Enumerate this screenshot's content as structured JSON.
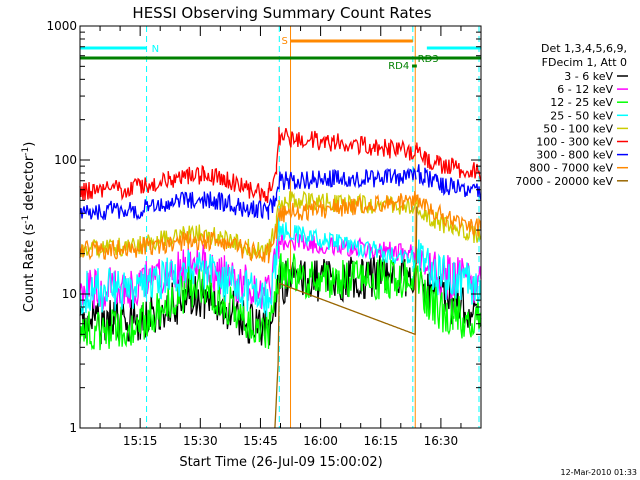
{
  "chart_data": {
    "type": "line",
    "title": "HESSI Observing Summary Count Rates",
    "xlabel": "Start Time (26-Jul-09 15:00:02)",
    "ylabel_parts": [
      "Count Rate (s",
      "-1",
      " detector",
      "-1",
      ")"
    ],
    "yscale": "log",
    "ylim": [
      1,
      1000
    ],
    "xlim_minutes": [
      0,
      100
    ],
    "y_ticks": [
      {
        "v": 1,
        "label": "1"
      },
      {
        "v": 10,
        "label": "10"
      },
      {
        "v": 100,
        "label": "100"
      },
      {
        "v": 1000,
        "label": "1000"
      }
    ],
    "x_ticks": [
      {
        "m": 15,
        "label": "15:15"
      },
      {
        "m": 30,
        "label": "15:30"
      },
      {
        "m": 45,
        "label": "15:45"
      },
      {
        "m": 60,
        "label": "16:00"
      },
      {
        "m": 75,
        "label": "16:15"
      },
      {
        "m": 90,
        "label": "16:30"
      }
    ],
    "legend_header": [
      "Det 1,3,4,5,6,9,",
      "FDecim 1, Att 0"
    ],
    "series": [
      {
        "name": "3 - 6 keV",
        "color": "#000000",
        "seed": 11,
        "points": [
          [
            0,
            6
          ],
          [
            15,
            6.5
          ],
          [
            22,
            8
          ],
          [
            27,
            9.5
          ],
          [
            31,
            9.5
          ],
          [
            36,
            8
          ],
          [
            42,
            6
          ],
          [
            47,
            5.5
          ],
          [
            49,
            10
          ],
          [
            49.6,
            12
          ],
          [
            84,
            14
          ],
          [
            86,
            11
          ],
          [
            89,
            9.5
          ],
          [
            93,
            8.5
          ],
          [
            100,
            8
          ]
        ]
      },
      {
        "name": "6 - 12 keV",
        "color": "#ff00ff",
        "seed": 23,
        "points": [
          [
            0,
            11
          ],
          [
            15,
            11.5
          ],
          [
            22,
            14
          ],
          [
            27,
            16
          ],
          [
            31,
            16
          ],
          [
            36,
            14
          ],
          [
            42,
            11
          ],
          [
            47,
            10
          ],
          [
            49,
            18
          ],
          [
            49.6,
            25
          ],
          [
            84,
            20
          ],
          [
            86,
            17
          ],
          [
            89,
            14
          ],
          [
            93,
            13
          ],
          [
            100,
            12
          ]
        ]
      },
      {
        "name": "12 - 25 keV",
        "color": "#00ff00",
        "seed": 37,
        "points": [
          [
            0,
            5
          ],
          [
            15,
            6
          ],
          [
            22,
            9
          ],
          [
            27,
            11
          ],
          [
            31,
            11
          ],
          [
            36,
            9
          ],
          [
            42,
            6
          ],
          [
            47,
            5
          ],
          [
            49,
            10
          ],
          [
            49.6,
            14
          ],
          [
            84,
            13
          ],
          [
            86,
            10
          ],
          [
            89,
            8
          ],
          [
            93,
            7
          ],
          [
            100,
            6.5
          ]
        ]
      },
      {
        "name": "25 - 50 keV",
        "color": "#00ffff",
        "seed": 41,
        "points": [
          [
            0,
            10.5
          ],
          [
            15,
            11
          ],
          [
            22,
            13
          ],
          [
            27,
            14.5
          ],
          [
            31,
            14.5
          ],
          [
            36,
            13
          ],
          [
            42,
            10.5
          ],
          [
            47,
            9.5
          ],
          [
            49,
            17
          ],
          [
            49.6,
            30
          ],
          [
            84,
            18
          ],
          [
            86,
            16
          ],
          [
            89,
            14
          ],
          [
            93,
            12.5
          ],
          [
            100,
            12
          ]
        ]
      },
      {
        "name": "50 - 100 keV",
        "color": "#cccc00",
        "seed": 53,
        "points": [
          [
            0,
            22
          ],
          [
            15,
            23
          ],
          [
            22,
            26
          ],
          [
            27,
            28
          ],
          [
            31,
            28
          ],
          [
            36,
            26
          ],
          [
            42,
            22
          ],
          [
            47,
            21
          ],
          [
            49,
            33
          ],
          [
            49.6,
            50
          ],
          [
            84,
            45
          ],
          [
            86,
            40
          ],
          [
            89,
            35
          ],
          [
            93,
            31
          ],
          [
            100,
            27
          ]
        ]
      },
      {
        "name": "100 - 300 keV",
        "color": "#ff0000",
        "seed": 61,
        "points": [
          [
            0,
            58
          ],
          [
            15,
            62
          ],
          [
            22,
            72
          ],
          [
            27,
            77
          ],
          [
            31,
            77
          ],
          [
            36,
            72
          ],
          [
            42,
            60
          ],
          [
            47,
            55
          ],
          [
            49,
            90
          ],
          [
            49.6,
            150
          ],
          [
            84,
            115
          ],
          [
            86,
            105
          ],
          [
            89,
            95
          ],
          [
            93,
            88
          ],
          [
            100,
            80
          ]
        ]
      },
      {
        "name": "300 - 800 keV",
        "color": "#0000ff",
        "seed": 71,
        "points": [
          [
            0,
            41
          ],
          [
            15,
            43
          ],
          [
            22,
            48
          ],
          [
            27,
            51
          ],
          [
            31,
            51
          ],
          [
            36,
            48
          ],
          [
            42,
            43
          ],
          [
            47,
            41
          ],
          [
            49,
            55
          ],
          [
            49.6,
            70
          ],
          [
            83.8,
            75
          ],
          [
            84,
            80
          ],
          [
            86,
            75
          ],
          [
            89,
            68
          ],
          [
            93,
            63
          ],
          [
            100,
            58
          ]
        ]
      },
      {
        "name": "800 - 7000 keV",
        "color": "#ff8800",
        "seed": 83,
        "points": [
          [
            0,
            21
          ],
          [
            15,
            22
          ],
          [
            22,
            24
          ],
          [
            27,
            25
          ],
          [
            31,
            25
          ],
          [
            36,
            24
          ],
          [
            42,
            21
          ],
          [
            47,
            20
          ],
          [
            49,
            30
          ],
          [
            49.6,
            40
          ],
          [
            84,
            50
          ],
          [
            86,
            44
          ],
          [
            89,
            40
          ],
          [
            93,
            35
          ],
          [
            100,
            31
          ]
        ]
      },
      {
        "name": "7000 - 20000 keV",
        "color": "#996600",
        "seed": 97,
        "points": [
          [
            48.6,
            1
          ],
          [
            49.4,
            3
          ],
          [
            49.7,
            12
          ],
          [
            83.6,
            5
          ],
          [
            84,
            45
          ]
        ]
      }
    ],
    "bars": [
      {
        "label": "N",
        "color": "#00ffff",
        "segments": [
          [
            0,
            16.6
          ],
          [
            86.5,
            100
          ]
        ]
      },
      {
        "label": "S",
        "color": "#ff8800",
        "segments": [
          [
            52.5,
            83
          ]
        ]
      },
      {
        "label": "RD4",
        "color": "#008000",
        "segments": [
          [
            0,
            100
          ]
        ]
      },
      {
        "label": "RD3",
        "color": "#008000",
        "segments": [
          [
            82.8,
            84
          ]
        ]
      }
    ],
    "vlines": [
      {
        "m": 16.6,
        "color": "#00ffff",
        "style": "dashed"
      },
      {
        "m": 49.7,
        "color": "#00ffff",
        "style": "dashed"
      },
      {
        "m": 52.5,
        "color": "#ff8800",
        "style": "solid"
      },
      {
        "m": 83,
        "color": "#00ffff",
        "style": "dashed"
      },
      {
        "m": 83.6,
        "color": "#ff8800",
        "style": "solid"
      },
      {
        "m": 99.5,
        "color": "#00ffff",
        "style": "dashed"
      }
    ],
    "footer": "12-Mar-2010 01:33"
  }
}
